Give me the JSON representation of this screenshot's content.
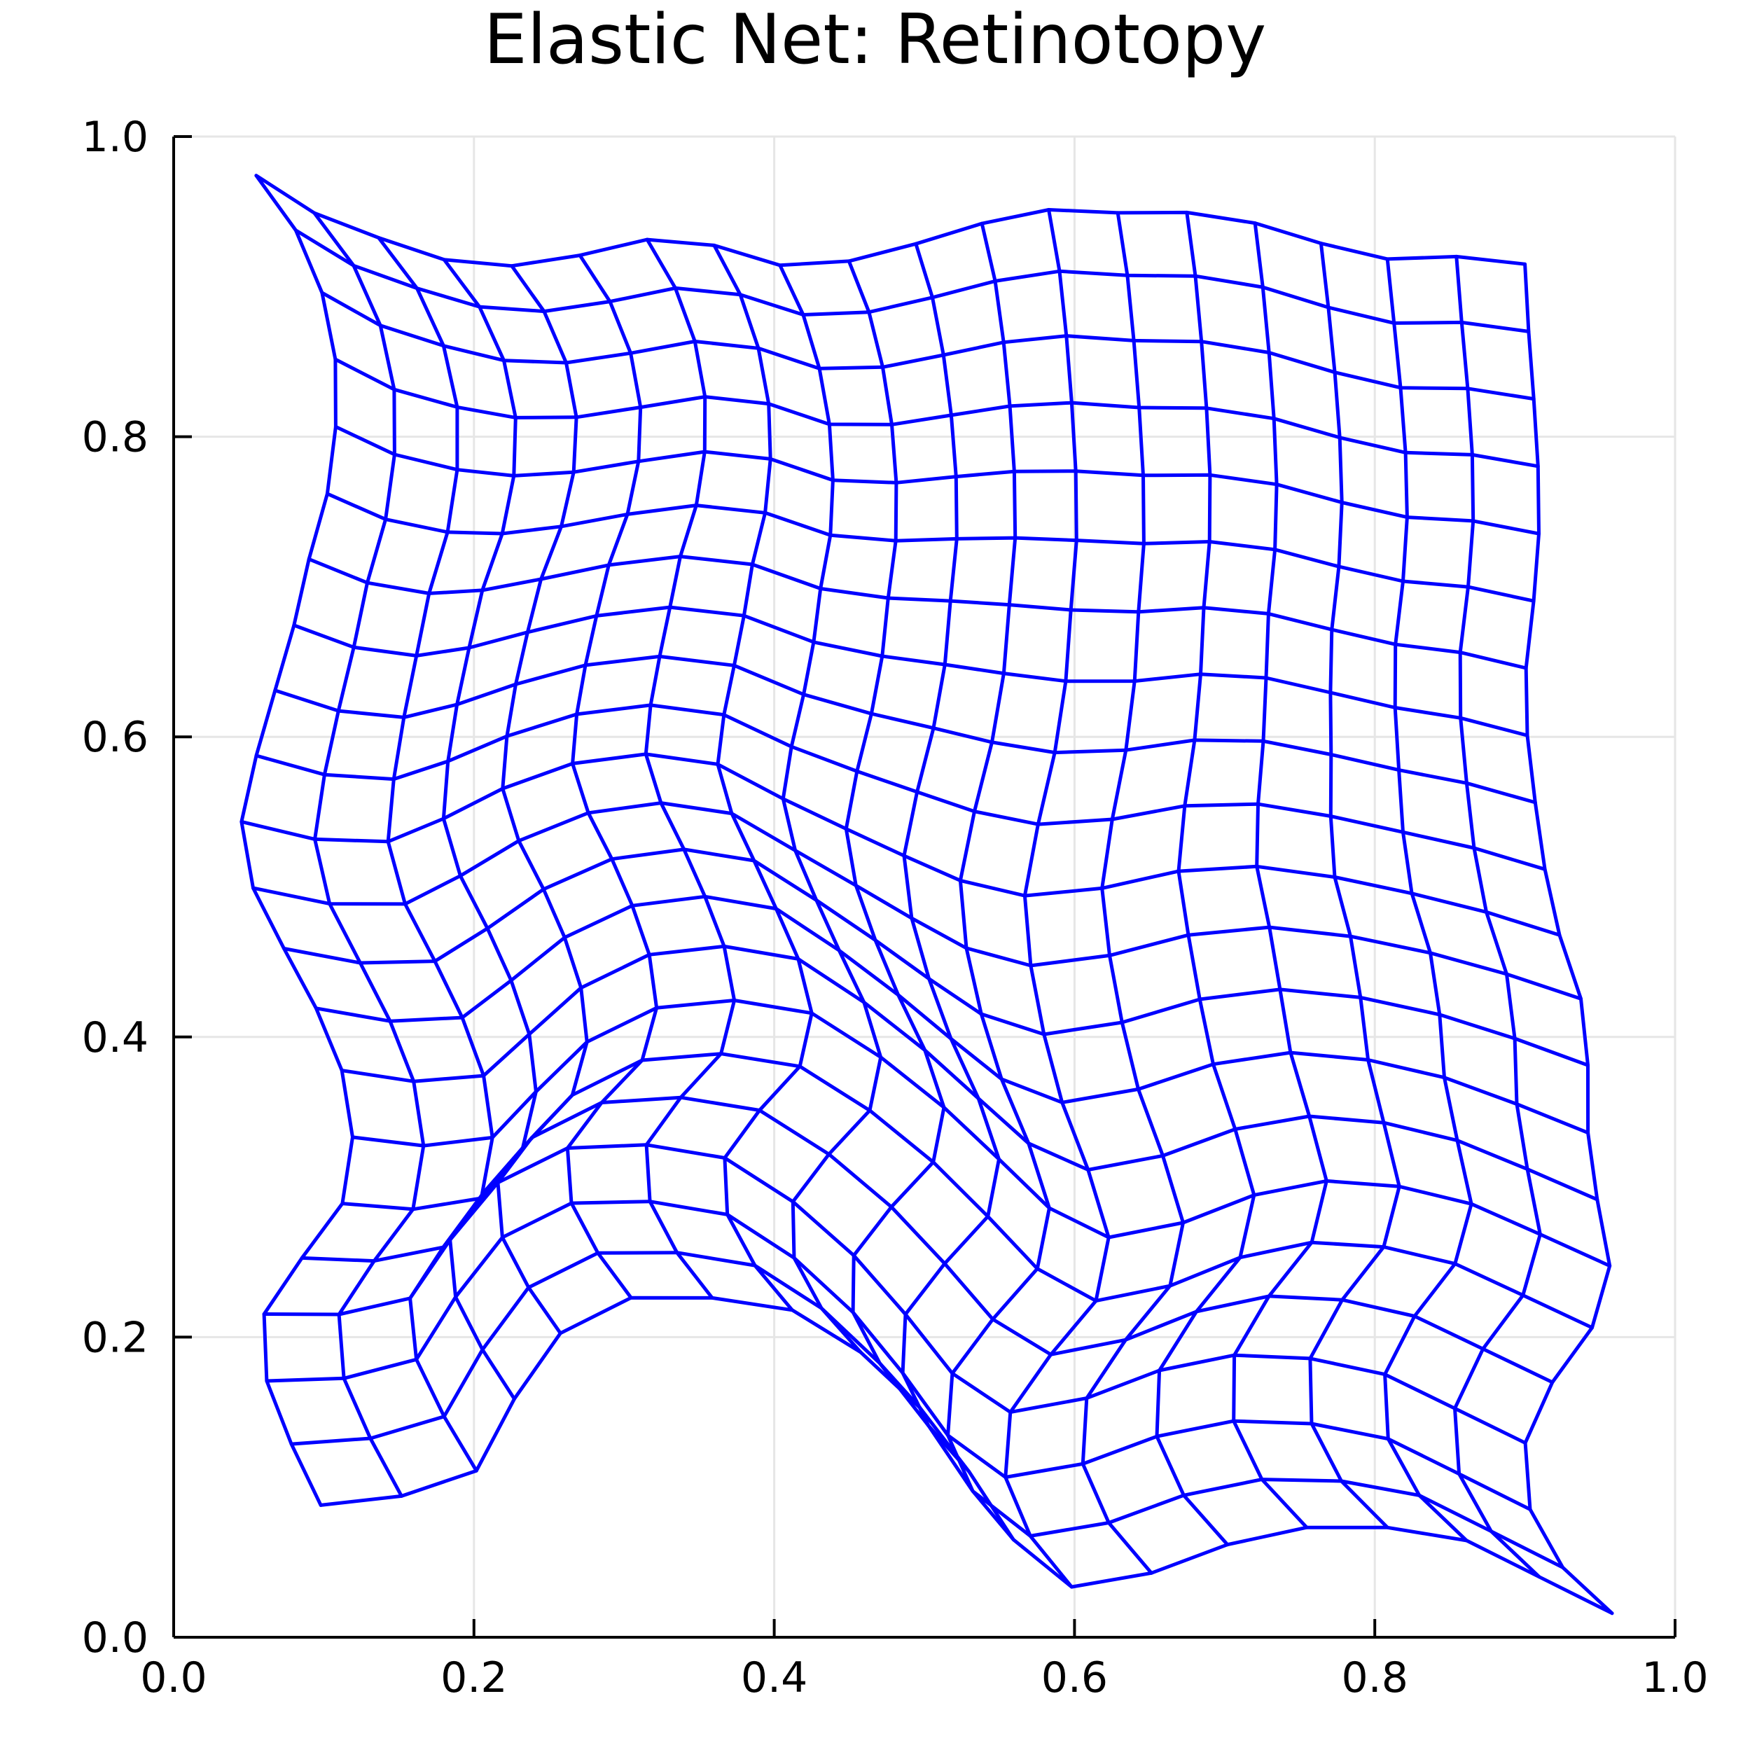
{
  "chart_data": {
    "type": "line",
    "title": "Elastic Net: Retinotopy",
    "xlabel": "",
    "ylabel": "",
    "xlim": [
      0.0,
      1.0
    ],
    "ylim": [
      0.0,
      1.0
    ],
    "x_ticks": [
      "0.0",
      "0.2",
      "0.4",
      "0.6",
      "0.8",
      "1.0"
    ],
    "y_ticks": [
      "0.0",
      "0.2",
      "0.4",
      "0.6",
      "0.8",
      "1.0"
    ],
    "grid": true,
    "legend": "none",
    "color": "#0000ff",
    "grid_size": [
      20,
      22
    ],
    "corners": {
      "top_left": [
        0.055,
        0.974
      ],
      "top_right": [
        0.9,
        0.915
      ],
      "bottom_left": [
        0.098,
        0.088
      ],
      "bottom_right": [
        0.958,
        0.016
      ]
    },
    "outline": {
      "left": [
        [
          0.055,
          0.974
        ],
        [
          0.078,
          0.945
        ],
        [
          0.098,
          0.9
        ],
        [
          0.11,
          0.84
        ],
        [
          0.106,
          0.775
        ],
        [
          0.09,
          0.718
        ],
        [
          0.078,
          0.665
        ],
        [
          0.058,
          0.6
        ],
        [
          0.045,
          0.545
        ],
        [
          0.05,
          0.505
        ],
        [
          0.078,
          0.45
        ],
        [
          0.108,
          0.395
        ],
        [
          0.118,
          0.352
        ],
        [
          0.12,
          0.32
        ],
        [
          0.113,
          0.29
        ],
        [
          0.098,
          0.268
        ],
        [
          0.075,
          0.24
        ],
        [
          0.06,
          0.215
        ],
        [
          0.058,
          0.185
        ],
        [
          0.065,
          0.16
        ],
        [
          0.08,
          0.125
        ],
        [
          0.098,
          0.088
        ]
      ],
      "top": [
        [
          0.055,
          0.974
        ],
        [
          0.1,
          0.945
        ],
        [
          0.15,
          0.928
        ],
        [
          0.198,
          0.912
        ],
        [
          0.243,
          0.915
        ],
        [
          0.29,
          0.925
        ],
        [
          0.33,
          0.935
        ],
        [
          0.37,
          0.925
        ],
        [
          0.4,
          0.914
        ],
        [
          0.45,
          0.917
        ],
        [
          0.5,
          0.93
        ],
        [
          0.57,
          0.952
        ],
        [
          0.62,
          0.949
        ],
        [
          0.67,
          0.95
        ],
        [
          0.71,
          0.945
        ],
        [
          0.748,
          0.935
        ],
        [
          0.79,
          0.919
        ],
        [
          0.82,
          0.918
        ],
        [
          0.85,
          0.92
        ],
        [
          0.87,
          0.92
        ],
        [
          0.885,
          0.918
        ],
        [
          0.9,
          0.915
        ]
      ],
      "right": [
        [
          0.9,
          0.915
        ],
        [
          0.903,
          0.86
        ],
        [
          0.908,
          0.8
        ],
        [
          0.91,
          0.745
        ],
        [
          0.905,
          0.68
        ],
        [
          0.9,
          0.64
        ],
        [
          0.902,
          0.59
        ],
        [
          0.915,
          0.5
        ],
        [
          0.93,
          0.44
        ],
        [
          0.94,
          0.42
        ],
        [
          0.942,
          0.38
        ],
        [
          0.942,
          0.33
        ],
        [
          0.95,
          0.28
        ],
        [
          0.958,
          0.24
        ],
        [
          0.955,
          0.22
        ],
        [
          0.925,
          0.18
        ],
        [
          0.905,
          0.15
        ],
        [
          0.898,
          0.12
        ],
        [
          0.902,
          0.09
        ],
        [
          0.908,
          0.07
        ],
        [
          0.93,
          0.04
        ],
        [
          0.958,
          0.016
        ]
      ],
      "bottom": [
        [
          0.098,
          0.088
        ],
        [
          0.14,
          0.092
        ],
        [
          0.185,
          0.1
        ],
        [
          0.2,
          0.108
        ],
        [
          0.215,
          0.135
        ],
        [
          0.24,
          0.185
        ],
        [
          0.27,
          0.215
        ],
        [
          0.3,
          0.226
        ],
        [
          0.34,
          0.228
        ],
        [
          0.4,
          0.222
        ],
        [
          0.43,
          0.212
        ],
        [
          0.47,
          0.18
        ],
        [
          0.51,
          0.14
        ],
        [
          0.55,
          0.08
        ],
        [
          0.575,
          0.04
        ],
        [
          0.59,
          0.033
        ],
        [
          0.62,
          0.035
        ],
        [
          0.66,
          0.045
        ],
        [
          0.71,
          0.065
        ],
        [
          0.77,
          0.076
        ],
        [
          0.85,
          0.07
        ],
        [
          0.958,
          0.016
        ]
      ]
    }
  }
}
